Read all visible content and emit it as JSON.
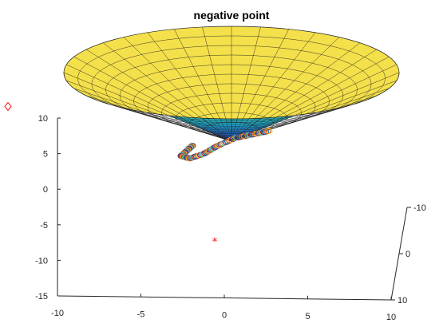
{
  "chart_data": {
    "type": "surface3d",
    "title": "negative point",
    "xlabel": "",
    "ylabel": "",
    "zlabel": "",
    "x_ticks": [
      "-10",
      "-5",
      "0",
      "5",
      "10"
    ],
    "y_ticks": [
      "-10",
      "0",
      "10"
    ],
    "z_ticks": [
      "10",
      "5",
      "0",
      "-5",
      "-10",
      "-15"
    ],
    "xlim": [
      -10,
      10
    ],
    "ylim": [
      -10,
      10
    ],
    "zlim": [
      -15,
      10
    ],
    "surface": {
      "shape": "cone",
      "formula": "z = sqrt(x^2 + y^2)",
      "colormap": "parula",
      "grid": "meshgrid"
    },
    "grid": false,
    "series": [
      {
        "marker": "circle",
        "color": "multicolor",
        "points": [
          {
            "x": -6.5,
            "y": -2.0,
            "z": 7.0
          },
          {
            "x": -5.5,
            "y": -1.0,
            "z": 6.0
          },
          {
            "x": -4.5,
            "y": 0.0,
            "z": 5.0
          },
          {
            "x": -3.0,
            "y": 0.5,
            "z": 4.5
          },
          {
            "x": -1.0,
            "y": 1.0,
            "z": 5.0
          },
          {
            "x": 1.0,
            "y": 1.5,
            "z": 6.0
          },
          {
            "x": 3.0,
            "y": 1.8,
            "z": 7.0
          },
          {
            "x": 5.0,
            "y": 2.0,
            "z": 7.5
          },
          {
            "x": 6.5,
            "y": 2.0,
            "z": 8.0
          }
        ]
      },
      {
        "marker": "diamond",
        "color": "#ff0000",
        "points": [
          {
            "x": -9.5,
            "y": 7.0,
            "z": 10.0
          }
        ]
      },
      {
        "marker": "asterisk",
        "color": "#ff0000",
        "points": [
          {
            "x": -1.5,
            "y": 0.0,
            "z": -7.0
          }
        ]
      }
    ]
  }
}
